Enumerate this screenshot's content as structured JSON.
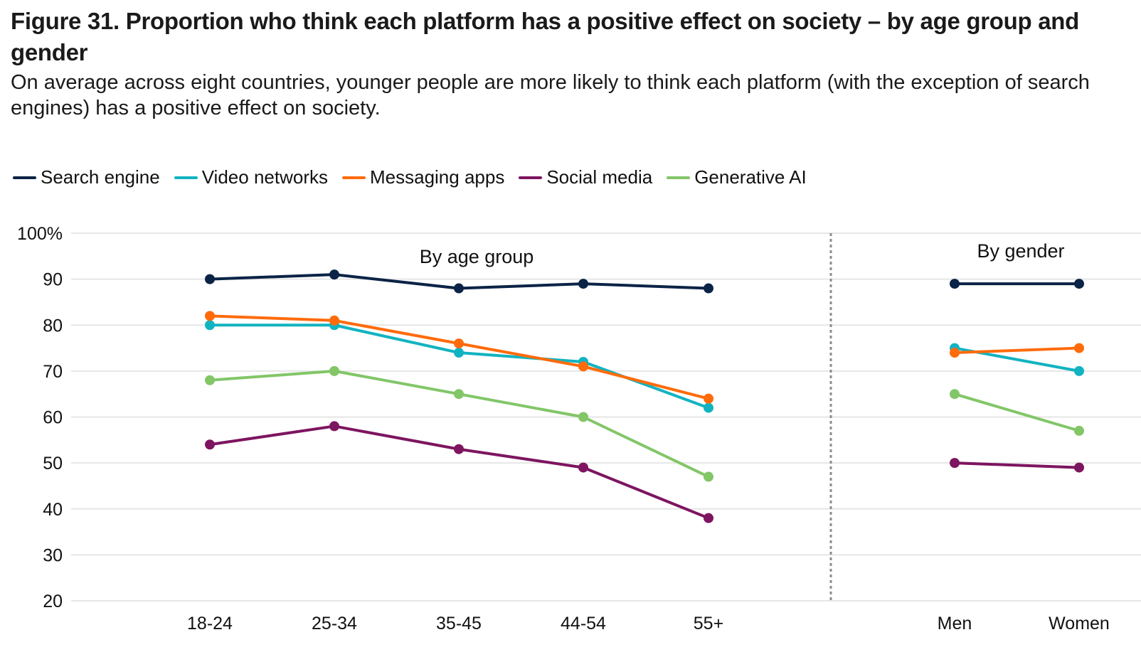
{
  "header": {
    "title": "Figure 31. Proportion who think each platform has a positive effect on society – by age group and gender",
    "subtitle": "On average across eight countries, younger people are more likely to think each platform (with the exception of search engines) has a positive effect on society."
  },
  "chart_data": {
    "type": "line",
    "title": "Figure 31. Proportion who think each platform has a positive effect on society – by age group and gender",
    "subtitle": "On average across eight countries, younger people are more likely to think each platform (with the exception of search engines) has a positive effect on society.",
    "xlabel": "",
    "ylabel": "",
    "ylim": [
      20,
      100
    ],
    "yticks": [
      100,
      90,
      80,
      70,
      60,
      50,
      40,
      30,
      20
    ],
    "ytick_labels": [
      "100%",
      "90",
      "80",
      "70",
      "60",
      "50",
      "40",
      "30",
      "20"
    ],
    "grid": true,
    "legend_position": "top-left",
    "panels": [
      {
        "label": "By age group",
        "categories": [
          "18-24",
          "25-34",
          "35-45",
          "44-54",
          "55+"
        ],
        "series": [
          {
            "name": "Search engine",
            "color": "#0b2346",
            "values": [
              90,
              91,
              88,
              89,
              88
            ]
          },
          {
            "name": "Video networks",
            "color": "#12b3c1",
            "values": [
              80,
              80,
              74,
              72,
              62
            ]
          },
          {
            "name": "Messaging apps",
            "color": "#ff6b0a",
            "values": [
              82,
              81,
              76,
              71,
              64
            ]
          },
          {
            "name": "Social media",
            "color": "#7d1560",
            "values": [
              54,
              58,
              53,
              49,
              38
            ]
          },
          {
            "name": "Generative AI",
            "color": "#82c668",
            "values": [
              68,
              70,
              65,
              60,
              47
            ]
          }
        ]
      },
      {
        "label": "By gender",
        "categories": [
          "Men",
          "Women"
        ],
        "series": [
          {
            "name": "Search engine",
            "color": "#0b2346",
            "values": [
              89,
              89
            ]
          },
          {
            "name": "Video networks",
            "color": "#12b3c1",
            "values": [
              75,
              70
            ]
          },
          {
            "name": "Messaging apps",
            "color": "#ff6b0a",
            "values": [
              74,
              75
            ]
          },
          {
            "name": "Social media",
            "color": "#7d1560",
            "values": [
              50,
              49
            ]
          },
          {
            "name": "Generative AI",
            "color": "#82c668",
            "values": [
              65,
              57
            ]
          }
        ]
      }
    ],
    "legend": [
      {
        "name": "Search engine",
        "color": "#0b2346"
      },
      {
        "name": "Video networks",
        "color": "#12b3c1"
      },
      {
        "name": "Messaging apps",
        "color": "#ff6b0a"
      },
      {
        "name": "Social media",
        "color": "#7d1560"
      },
      {
        "name": "Generative AI",
        "color": "#82c668"
      }
    ]
  }
}
